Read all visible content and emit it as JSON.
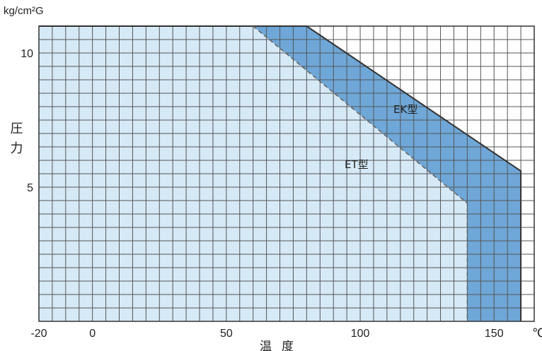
{
  "chart_data": {
    "type": "area",
    "ylabel_unit": "kg/cm²G",
    "ylabel": "圧力",
    "xlabel": "温度",
    "xunit": "℃",
    "xlim": [
      -20,
      165
    ],
    "ylim": [
      0,
      11
    ],
    "x_ticks": [
      -20,
      0,
      50,
      100,
      150
    ],
    "y_ticks": [
      5,
      10
    ],
    "grid": true,
    "series": [
      {
        "name": "EK型",
        "x": [
          -20,
          80,
          160,
          160,
          -20
        ],
        "y": [
          11,
          11,
          5.6,
          0,
          0
        ],
        "fill": "#6ea7d8",
        "line": "solid"
      },
      {
        "name": "ET型",
        "x": [
          -20,
          60,
          140,
          140,
          -20
        ],
        "y": [
          11,
          11,
          4.4,
          0,
          0
        ],
        "fill": "#d6e9f7",
        "line": "dashed"
      }
    ]
  }
}
